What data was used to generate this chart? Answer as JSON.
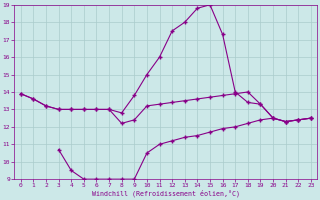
{
  "xlabel": "Windchill (Refroidissement éolien,°C)",
  "background_color": "#cce8e8",
  "grid_color": "#aacccc",
  "line_color": "#880088",
  "xlim": [
    -0.5,
    23.5
  ],
  "ylim": [
    9,
    19
  ],
  "yticks": [
    9,
    10,
    11,
    12,
    13,
    14,
    15,
    16,
    17,
    18,
    19
  ],
  "xticks": [
    0,
    1,
    2,
    3,
    4,
    5,
    6,
    7,
    8,
    9,
    10,
    11,
    12,
    13,
    14,
    15,
    16,
    17,
    18,
    19,
    20,
    21,
    22,
    23
  ],
  "line1_x": [
    0,
    1,
    2,
    3,
    4,
    5,
    6,
    7,
    8,
    9,
    10,
    11,
    12,
    13,
    14,
    15,
    16,
    17,
    18,
    19,
    20,
    21,
    22,
    23
  ],
  "line1_y": [
    13.9,
    13.6,
    13.2,
    13.0,
    13.0,
    13.0,
    13.0,
    13.0,
    12.2,
    12.4,
    13.2,
    13.3,
    13.4,
    13.5,
    13.6,
    13.7,
    13.8,
    13.9,
    14.0,
    13.3,
    12.5,
    12.3,
    12.4,
    12.5
  ],
  "line2_x": [
    0,
    1,
    2,
    3,
    4,
    5,
    6,
    7,
    8,
    9,
    10,
    11,
    12,
    13,
    14,
    15,
    16,
    17,
    18,
    19,
    20,
    21,
    22,
    23
  ],
  "line2_y": [
    13.9,
    13.6,
    13.2,
    13.0,
    13.0,
    13.0,
    13.0,
    13.0,
    12.8,
    13.8,
    15.0,
    16.0,
    17.5,
    18.0,
    18.8,
    19.0,
    17.3,
    14.0,
    13.4,
    13.3,
    12.5,
    12.3,
    12.4,
    12.5
  ],
  "line3_x": [
    3,
    4,
    5,
    6,
    7,
    8,
    9,
    10,
    11,
    12,
    13,
    14,
    15,
    16,
    17,
    18,
    19,
    20,
    21,
    22,
    23
  ],
  "line3_y": [
    10.7,
    9.5,
    9.0,
    9.0,
    9.0,
    9.0,
    9.0,
    10.5,
    11.0,
    11.2,
    11.4,
    11.5,
    11.7,
    11.9,
    12.0,
    12.2,
    12.4,
    12.5,
    12.3,
    12.4,
    12.5
  ],
  "marker": "+",
  "markersize": 3,
  "linewidth": 0.8,
  "tick_labelsize": 4.5,
  "xlabel_fontsize": 4.8
}
